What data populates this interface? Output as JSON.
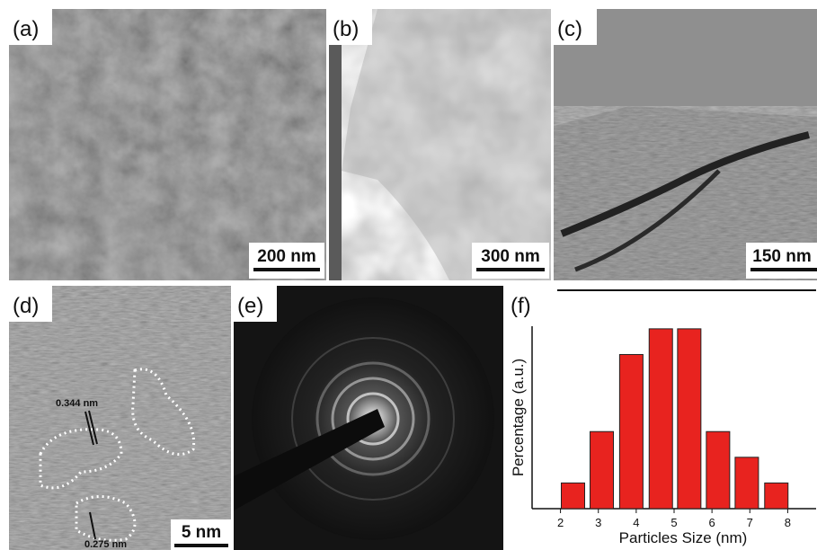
{
  "panels": [
    {
      "label": "(a)",
      "scale_bar": "200 nm"
    },
    {
      "label": "(b)",
      "scale_bar": "300 nm"
    },
    {
      "label": "(c)",
      "scale_bar": "150 nm"
    },
    {
      "label": "(d)",
      "scale_bar": "5 nm",
      "annotations": [
        "0.344 nm",
        "0.275 nm"
      ]
    },
    {
      "label": "(e)"
    },
    {
      "label": "(f)"
    }
  ],
  "chart_data": {
    "type": "bar",
    "x_label": "Particles Size (nm)",
    "y_label": "Percentage (a.u.)",
    "x": [
      2.33,
      3.09,
      3.87,
      4.65,
      5.4,
      6.16,
      6.92,
      7.7
    ],
    "values": [
      1,
      3,
      6,
      7,
      7,
      3,
      2,
      1
    ],
    "color": "#e8231f",
    "xlim": [
      1.25,
      8.75
    ],
    "xticks": [
      2,
      3,
      4,
      5,
      6,
      7,
      8
    ],
    "ylim": [
      0,
      8.5
    ]
  }
}
